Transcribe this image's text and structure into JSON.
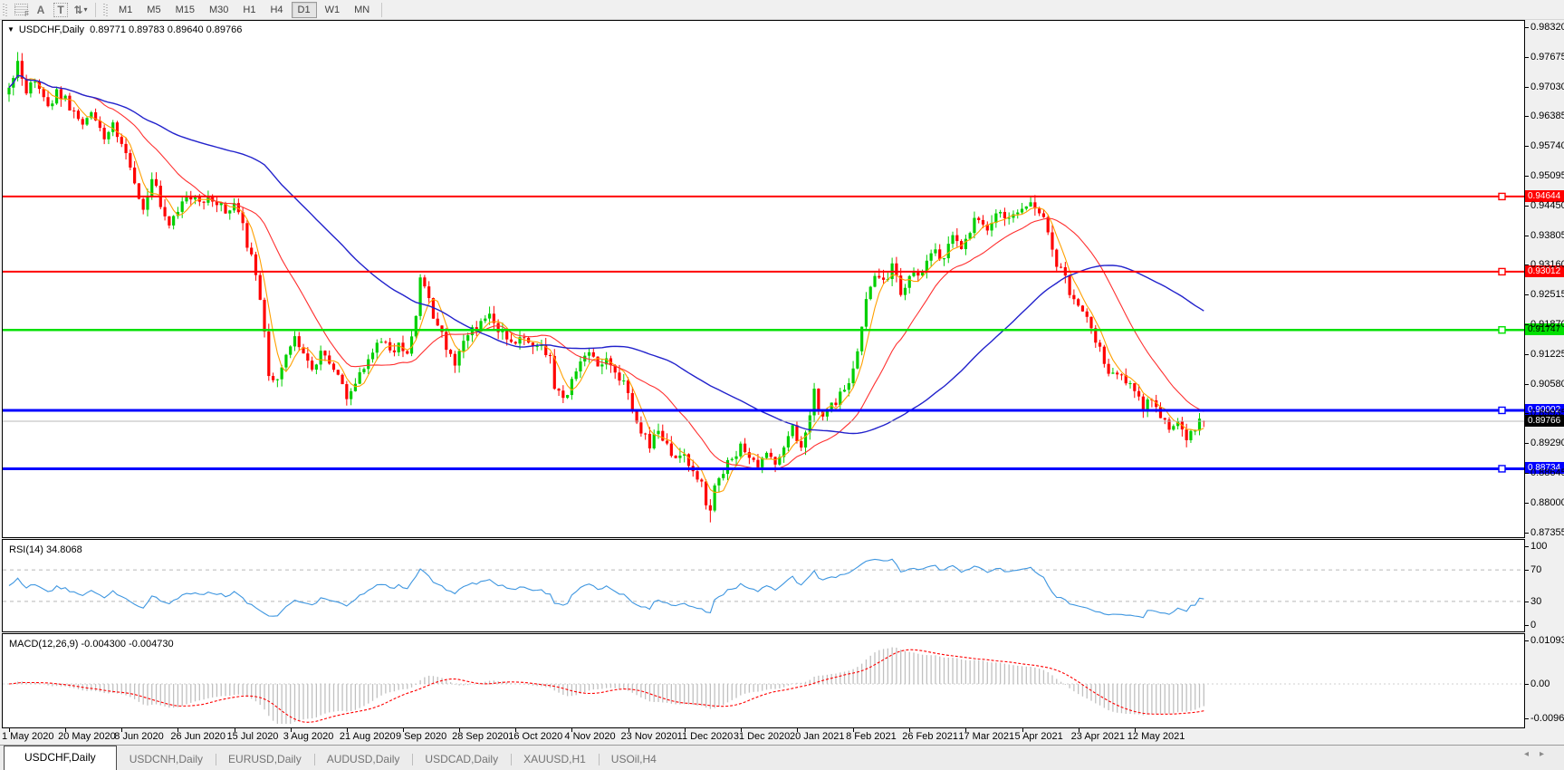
{
  "toolbar": {
    "icons": [
      {
        "name": "fibonacci-icon",
        "glyph": "F"
      },
      {
        "name": "text-label-icon",
        "glyph": "A"
      },
      {
        "name": "text-box-icon",
        "glyph": "T"
      },
      {
        "name": "arrows-icon",
        "glyph": "⇅"
      },
      {
        "name": "dropdown-caret-icon",
        "glyph": "▾"
      }
    ],
    "timeframes": [
      {
        "label": "M1",
        "active": false
      },
      {
        "label": "M5",
        "active": false
      },
      {
        "label": "M15",
        "active": false
      },
      {
        "label": "M30",
        "active": false
      },
      {
        "label": "H1",
        "active": false
      },
      {
        "label": "H4",
        "active": false
      },
      {
        "label": "D1",
        "active": true
      },
      {
        "label": "W1",
        "active": false
      },
      {
        "label": "MN",
        "active": false
      }
    ]
  },
  "chart": {
    "title_symbol": "USDCHF,Daily",
    "title_ohlc": "0.89771 0.89783 0.89640 0.89766",
    "dropdown_triangle": "▼"
  },
  "indicators": {
    "rsi_label": "RSI(14)",
    "rsi_value": "34.8068",
    "macd_label": "MACD(12,26,9)",
    "macd_values": "-0.004300 -0.004730"
  },
  "tabs": {
    "items": [
      {
        "label": "USDCHF,Daily",
        "active": true
      },
      {
        "label": "USDCNH,Daily",
        "active": false
      },
      {
        "label": "EURUSD,Daily",
        "active": false
      },
      {
        "label": "AUDUSD,Daily",
        "active": false
      },
      {
        "label": "USDCAD,Daily",
        "active": false
      },
      {
        "label": "XAUUSD,H1",
        "active": false
      },
      {
        "label": "USOil,H4",
        "active": false
      }
    ],
    "scroll_left_glyph": "◂",
    "scroll_right_glyph": "▸"
  },
  "chart_data": {
    "type": "candlestick",
    "symbol": "USDCHF",
    "timeframe": "Daily",
    "current_bar": {
      "open": 0.89771,
      "high": 0.89783,
      "low": 0.8964,
      "close": 0.89766
    },
    "bull_color": "#00CF00",
    "bear_color": "#FF0000",
    "y_axis": {
      "max_label": 0.9832,
      "tick_step": 0.00645,
      "ticks": [
        "0.98320",
        "0.97675",
        "0.97030",
        "0.96385",
        "0.95740",
        "0.95095",
        "0.94450",
        "0.93805",
        "0.93160",
        "0.92515",
        "0.91870",
        "0.91225",
        "0.90580",
        "0.89935",
        "0.89290",
        "0.88645",
        "0.88000",
        "0.87355"
      ]
    },
    "x_axis": {
      "dates": [
        "1 May 2020",
        "20 May 2020",
        "8 Jun 2020",
        "26 Jun 2020",
        "15 Jul 2020",
        "3 Aug 2020",
        "21 Aug 2020",
        "9 Sep 2020",
        "28 Sep 2020",
        "16 Oct 2020",
        "4 Nov 2020",
        "23 Nov 2020",
        "11 Dec 2020",
        "31 Dec 2020",
        "20 Jan 2021",
        "8 Feb 2021",
        "26 Feb 2021",
        "17 Mar 2021",
        "5 Apr 2021",
        "23 Apr 2021",
        "12 May 2021"
      ],
      "trading_days_per_tick": 13
    },
    "horizontal_levels": [
      {
        "price": 0.94644,
        "label": "0.94644",
        "color": "#FF0000",
        "text": "#FFFFFF",
        "width": 2
      },
      {
        "price": 0.93012,
        "label": "0.93012",
        "color": "#FF0000",
        "text": "#FFFFFF",
        "width": 2
      },
      {
        "price": 0.91747,
        "label": "0.91747",
        "color": "#00E000",
        "text": "#000000",
        "width": 2.5
      },
      {
        "price": 0.90002,
        "label": "0.90002",
        "color": "#0000FF",
        "text": "#FFFFFF",
        "width": 3
      },
      {
        "price": 0.88734,
        "label": "0.88734",
        "color": "#0000FF",
        "text": "#FFFFFF",
        "width": 3
      }
    ],
    "current_price": {
      "price": 0.89766,
      "label": "0.89766",
      "line_color": "#B8B8B8",
      "box_color": "#000000"
    },
    "moving_averages": [
      {
        "name": "fast-ma",
        "period": 5,
        "color": "#FFA000",
        "width": 1.1
      },
      {
        "name": "medium-ma",
        "period": 20,
        "color": "#FF3030",
        "width": 1.1
      },
      {
        "name": "slow-ma",
        "period": 60,
        "color": "#2222CC",
        "width": 1.4
      }
    ],
    "price_path_anchors": [
      [
        0,
        0.969
      ],
      [
        2,
        0.9758
      ],
      [
        4,
        0.97
      ],
      [
        6,
        0.9722
      ],
      [
        9,
        0.9655
      ],
      [
        11,
        0.9695
      ],
      [
        13,
        0.9675
      ],
      [
        15,
        0.9648
      ],
      [
        17,
        0.9618
      ],
      [
        19,
        0.965
      ],
      [
        22,
        0.9598
      ],
      [
        24,
        0.9625
      ],
      [
        27,
        0.9565
      ],
      [
        29,
        0.9485
      ],
      [
        31,
        0.9445
      ],
      [
        33,
        0.9508
      ],
      [
        35,
        0.9445
      ],
      [
        37,
        0.9412
      ],
      [
        39,
        0.9438
      ],
      [
        42,
        0.9465
      ],
      [
        44,
        0.9448
      ],
      [
        46,
        0.9465
      ],
      [
        48,
        0.9452
      ],
      [
        50,
        0.9432
      ],
      [
        52,
        0.9445
      ],
      [
        54,
        0.9398
      ],
      [
        56,
        0.933
      ],
      [
        58,
        0.9245
      ],
      [
        60,
        0.908
      ],
      [
        62,
        0.9058
      ],
      [
        64,
        0.9125
      ],
      [
        66,
        0.915
      ],
      [
        68,
        0.913
      ],
      [
        70,
        0.9082
      ],
      [
        72,
        0.9122
      ],
      [
        74,
        0.9098
      ],
      [
        76,
        0.9085
      ],
      [
        78,
        0.9022
      ],
      [
        80,
        0.9065
      ],
      [
        82,
        0.9095
      ],
      [
        84,
        0.9135
      ],
      [
        86,
        0.9152
      ],
      [
        88,
        0.9128
      ],
      [
        90,
        0.9148
      ],
      [
        92,
        0.9128
      ],
      [
        94,
        0.92
      ],
      [
        95,
        0.9282
      ],
      [
        97,
        0.924
      ],
      [
        99,
        0.9178
      ],
      [
        101,
        0.914
      ],
      [
        103,
        0.9108
      ],
      [
        105,
        0.9142
      ],
      [
        107,
        0.9172
      ],
      [
        109,
        0.9188
      ],
      [
        111,
        0.9215
      ],
      [
        113,
        0.918
      ],
      [
        115,
        0.9158
      ],
      [
        117,
        0.9142
      ],
      [
        119,
        0.9152
      ],
      [
        121,
        0.9138
      ],
      [
        123,
        0.9142
      ],
      [
        125,
        0.9118
      ],
      [
        126,
        0.9048
      ],
      [
        128,
        0.9022
      ],
      [
        130,
        0.9068
      ],
      [
        132,
        0.9112
      ],
      [
        134,
        0.9135
      ],
      [
        136,
        0.9092
      ],
      [
        138,
        0.9102
      ],
      [
        140,
        0.9078
      ],
      [
        142,
        0.9058
      ],
      [
        144,
        0.9008
      ],
      [
        146,
        0.8958
      ],
      [
        148,
        0.8922
      ],
      [
        150,
        0.8958
      ],
      [
        152,
        0.8922
      ],
      [
        154,
        0.8902
      ],
      [
        156,
        0.8912
      ],
      [
        158,
        0.8862
      ],
      [
        160,
        0.8842
      ],
      [
        161,
        0.8802
      ],
      [
        162,
        0.8772
      ],
      [
        163,
        0.8832
      ],
      [
        165,
        0.8872
      ],
      [
        167,
        0.8892
      ],
      [
        169,
        0.8928
      ],
      [
        171,
        0.8895
      ],
      [
        173,
        0.8882
      ],
      [
        175,
        0.8912
      ],
      [
        177,
        0.8892
      ],
      [
        179,
        0.8928
      ],
      [
        181,
        0.8958
      ],
      [
        183,
        0.8922
      ],
      [
        185,
        0.8988
      ],
      [
        186,
        0.9042
      ],
      [
        188,
        0.8982
      ],
      [
        190,
        0.9012
      ],
      [
        192,
        0.9032
      ],
      [
        194,
        0.9062
      ],
      [
        196,
        0.9135
      ],
      [
        198,
        0.9232
      ],
      [
        200,
        0.9302
      ],
      [
        202,
        0.9272
      ],
      [
        204,
        0.9312
      ],
      [
        206,
        0.9252
      ],
      [
        208,
        0.9298
      ],
      [
        210,
        0.9288
      ],
      [
        212,
        0.9322
      ],
      [
        214,
        0.9342
      ],
      [
        216,
        0.9332
      ],
      [
        218,
        0.9372
      ],
      [
        220,
        0.9362
      ],
      [
        222,
        0.9392
      ],
      [
        224,
        0.9422
      ],
      [
        226,
        0.9402
      ],
      [
        228,
        0.9432
      ],
      [
        230,
        0.9418
      ],
      [
        232,
        0.9438
      ],
      [
        234,
        0.9442
      ],
      [
        236,
        0.9452
      ],
      [
        238,
        0.9438
      ],
      [
        240,
        0.9382
      ],
      [
        242,
        0.9322
      ],
      [
        244,
        0.9282
      ],
      [
        246,
        0.9242
      ],
      [
        248,
        0.9212
      ],
      [
        250,
        0.9172
      ],
      [
        252,
        0.9132
      ],
      [
        254,
        0.9082
      ],
      [
        256,
        0.9088
      ],
      [
        258,
        0.9062
      ],
      [
        260,
        0.9042
      ],
      [
        262,
        0.9012
      ],
      [
        264,
        0.9018
      ],
      [
        266,
        0.8992
      ],
      [
        268,
        0.8962
      ],
      [
        270,
        0.8982
      ],
      [
        272,
        0.8942
      ],
      [
        274,
        0.8968
      ],
      [
        276,
        0.8977
      ]
    ],
    "bar_count": 277,
    "rsi_panel": {
      "label": "RSI(14)",
      "value": 34.8068,
      "ticks": [
        "100",
        "70",
        "30",
        "0"
      ],
      "levels": [
        70,
        30
      ],
      "line_color": "#3E96E0",
      "range": [
        0,
        100
      ]
    },
    "macd_panel": {
      "label": "MACD(12,26,9)",
      "main_value": -0.0043,
      "signal_value": -0.00473,
      "ticks": [
        "0.010933",
        "0.00",
        "-0.009653"
      ],
      "range": [
        -0.009653,
        0.010933
      ],
      "histogram_color": "#C0C0C0",
      "signal_color": "#FF0000"
    }
  }
}
